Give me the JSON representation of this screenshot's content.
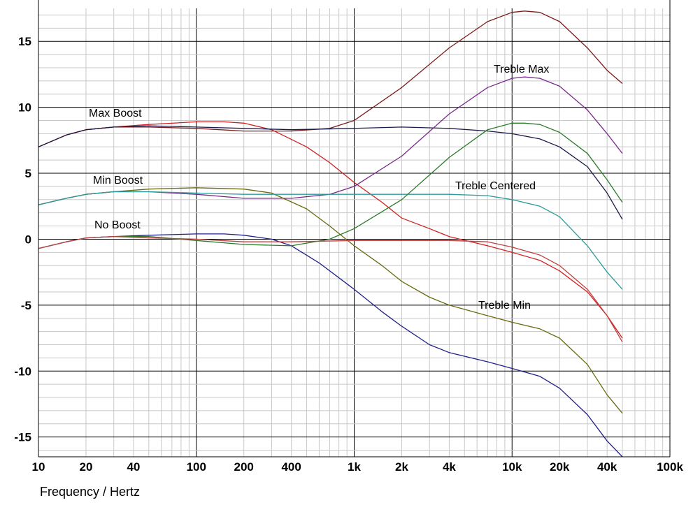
{
  "chart_data": {
    "type": "line",
    "title": "",
    "xlabel": "Frequency / Hertz",
    "ylabel": "",
    "x_scale": "log",
    "xlim": [
      10,
      100000
    ],
    "ylim": [
      -16.5,
      17.5
    ],
    "grid": true,
    "x_ticks": [
      10,
      20,
      40,
      100,
      200,
      400,
      1000,
      2000,
      4000,
      10000,
      20000,
      40000,
      100000
    ],
    "x_tick_labels": [
      "10",
      "20",
      "40",
      "100",
      "200",
      "400",
      "1k",
      "2k",
      "4k",
      "10k",
      "20k",
      "40k",
      "100k"
    ],
    "y_ticks": [
      -15,
      -10,
      -5,
      0,
      5,
      10,
      15
    ],
    "y_tick_labels": [
      "-15",
      "-10",
      "-5",
      "0",
      "5",
      "10",
      "15"
    ],
    "annotations": [
      "Max Boost",
      "Min Boost",
      "No Boost",
      "Treble Max",
      "Treble Centered",
      "Treble Min"
    ],
    "series": [
      {
        "color": "#7a1c1c",
        "points": [
          [
            10,
            7
          ],
          [
            15,
            7.9
          ],
          [
            20,
            8.3
          ],
          [
            30,
            8.5
          ],
          [
            50,
            8.5
          ],
          [
            100,
            8.4
          ],
          [
            200,
            8.2
          ],
          [
            400,
            8.2
          ],
          [
            700,
            8.4
          ],
          [
            1000,
            9
          ],
          [
            2000,
            11.5
          ],
          [
            4000,
            14.5
          ],
          [
            7000,
            16.5
          ],
          [
            10000,
            17.2
          ],
          [
            12000,
            17.3
          ],
          [
            15000,
            17.2
          ],
          [
            20000,
            16.5
          ],
          [
            30000,
            14.5
          ],
          [
            40000,
            12.8
          ],
          [
            50000,
            11.8
          ]
        ]
      },
      {
        "color": "#d02020",
        "points": [
          [
            10,
            7
          ],
          [
            15,
            7.9
          ],
          [
            20,
            8.3
          ],
          [
            30,
            8.5
          ],
          [
            50,
            8.7
          ],
          [
            100,
            8.9
          ],
          [
            150,
            8.9
          ],
          [
            200,
            8.8
          ],
          [
            300,
            8.3
          ],
          [
            500,
            7
          ],
          [
            700,
            5.8
          ],
          [
            1000,
            4.3
          ],
          [
            1500,
            2.8
          ],
          [
            2000,
            1.6
          ],
          [
            3000,
            0.8
          ],
          [
            4000,
            0.2
          ],
          [
            7000,
            -0.5
          ],
          [
            10000,
            -1
          ],
          [
            15000,
            -1.6
          ],
          [
            20000,
            -2.4
          ],
          [
            30000,
            -4
          ],
          [
            40000,
            -5.8
          ],
          [
            50000,
            -7.5
          ]
        ]
      },
      {
        "color": "#1a1a4a",
        "points": [
          [
            10,
            7
          ],
          [
            15,
            7.9
          ],
          [
            20,
            8.3
          ],
          [
            30,
            8.5
          ],
          [
            50,
            8.6
          ],
          [
            100,
            8.5
          ],
          [
            200,
            8.4
          ],
          [
            400,
            8.3
          ],
          [
            1000,
            8.4
          ],
          [
            2000,
            8.5
          ],
          [
            4000,
            8.4
          ],
          [
            7000,
            8.2
          ],
          [
            10000,
            8
          ],
          [
            15000,
            7.6
          ],
          [
            20000,
            7
          ],
          [
            30000,
            5.5
          ],
          [
            40000,
            3.5
          ],
          [
            50000,
            1.5
          ]
        ]
      },
      {
        "color": "#7a2a8a",
        "points": [
          [
            10,
            2.6
          ],
          [
            15,
            3.1
          ],
          [
            20,
            3.4
          ],
          [
            30,
            3.6
          ],
          [
            50,
            3.6
          ],
          [
            100,
            3.4
          ],
          [
            200,
            3.1
          ],
          [
            400,
            3.1
          ],
          [
            700,
            3.4
          ],
          [
            1000,
            4
          ],
          [
            2000,
            6.3
          ],
          [
            4000,
            9.5
          ],
          [
            7000,
            11.5
          ],
          [
            10000,
            12.2
          ],
          [
            12000,
            12.3
          ],
          [
            15000,
            12.2
          ],
          [
            20000,
            11.6
          ],
          [
            30000,
            9.8
          ],
          [
            40000,
            8
          ],
          [
            50000,
            6.5
          ]
        ]
      },
      {
        "color": "#6a6a10",
        "points": [
          [
            10,
            2.6
          ],
          [
            15,
            3.1
          ],
          [
            20,
            3.4
          ],
          [
            30,
            3.6
          ],
          [
            50,
            3.8
          ],
          [
            100,
            3.9
          ],
          [
            200,
            3.8
          ],
          [
            300,
            3.5
          ],
          [
            500,
            2.3
          ],
          [
            700,
            1
          ],
          [
            1000,
            -0.5
          ],
          [
            1500,
            -2
          ],
          [
            2000,
            -3.2
          ],
          [
            3000,
            -4.4
          ],
          [
            4000,
            -5
          ],
          [
            7000,
            -5.8
          ],
          [
            10000,
            -6.3
          ],
          [
            15000,
            -6.8
          ],
          [
            20000,
            -7.5
          ],
          [
            30000,
            -9.5
          ],
          [
            40000,
            -11.8
          ],
          [
            50000,
            -13.2
          ]
        ]
      },
      {
        "color": "#2a9a9a",
        "points": [
          [
            10,
            2.6
          ],
          [
            15,
            3.1
          ],
          [
            20,
            3.4
          ],
          [
            30,
            3.6
          ],
          [
            50,
            3.6
          ],
          [
            100,
            3.5
          ],
          [
            200,
            3.4
          ],
          [
            400,
            3.4
          ],
          [
            1000,
            3.4
          ],
          [
            2000,
            3.4
          ],
          [
            4000,
            3.4
          ],
          [
            7000,
            3.3
          ],
          [
            10000,
            3
          ],
          [
            15000,
            2.5
          ],
          [
            20000,
            1.7
          ],
          [
            30000,
            -0.5
          ],
          [
            40000,
            -2.5
          ],
          [
            50000,
            -3.8
          ]
        ]
      },
      {
        "color": "#20208a",
        "points": [
          [
            10,
            -0.7
          ],
          [
            15,
            -0.2
          ],
          [
            20,
            0.1
          ],
          [
            30,
            0.2
          ],
          [
            50,
            0.3
          ],
          [
            100,
            0.4
          ],
          [
            150,
            0.4
          ],
          [
            200,
            0.3
          ],
          [
            300,
            0
          ],
          [
            400,
            -0.5
          ],
          [
            600,
            -1.8
          ],
          [
            1000,
            -3.8
          ],
          [
            1500,
            -5.5
          ],
          [
            2000,
            -6.6
          ],
          [
            3000,
            -8
          ],
          [
            4000,
            -8.6
          ],
          [
            7000,
            -9.3
          ],
          [
            10000,
            -9.8
          ],
          [
            15000,
            -10.4
          ],
          [
            20000,
            -11.3
          ],
          [
            30000,
            -13.3
          ],
          [
            40000,
            -15.3
          ],
          [
            50000,
            -16.5
          ]
        ]
      },
      {
        "color": "#2a7a2a",
        "points": [
          [
            10,
            -0.7
          ],
          [
            15,
            -0.2
          ],
          [
            20,
            0.1
          ],
          [
            30,
            0.2
          ],
          [
            50,
            0.2
          ],
          [
            100,
            -0.1
          ],
          [
            200,
            -0.4
          ],
          [
            400,
            -0.5
          ],
          [
            700,
            0
          ],
          [
            1000,
            0.8
          ],
          [
            2000,
            3
          ],
          [
            4000,
            6.2
          ],
          [
            7000,
            8.3
          ],
          [
            10000,
            8.8
          ],
          [
            12000,
            8.8
          ],
          [
            15000,
            8.7
          ],
          [
            20000,
            8.1
          ],
          [
            30000,
            6.5
          ],
          [
            40000,
            4.5
          ],
          [
            50000,
            2.8
          ]
        ]
      },
      {
        "color": "#c04040",
        "points": [
          [
            10,
            -0.7
          ],
          [
            15,
            -0.2
          ],
          [
            20,
            0.1
          ],
          [
            30,
            0.2
          ],
          [
            50,
            0.1
          ],
          [
            100,
            0
          ],
          [
            200,
            -0.2
          ],
          [
            400,
            -0.2
          ],
          [
            1000,
            -0.1
          ],
          [
            2000,
            -0.1
          ],
          [
            4000,
            -0.1
          ],
          [
            7000,
            -0.2
          ],
          [
            10000,
            -0.6
          ],
          [
            15000,
            -1.2
          ],
          [
            20000,
            -2
          ],
          [
            30000,
            -3.8
          ],
          [
            40000,
            -5.8
          ],
          [
            50000,
            -7.8
          ]
        ]
      }
    ]
  }
}
